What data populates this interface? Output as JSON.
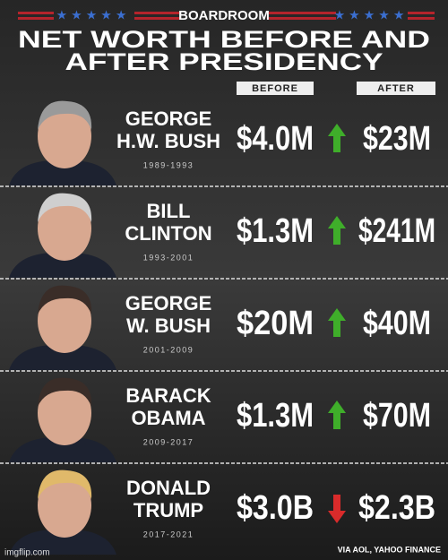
{
  "header": {
    "brand": "BOARDROOM",
    "title_lines": [
      "NET WORTH BEFORE AND",
      "AFTER PRESIDENCY"
    ]
  },
  "columns": [
    "BEFORE",
    "AFTER"
  ],
  "rows": [
    {
      "name_lines": [
        "GEORGE",
        "H.W. BUSH"
      ],
      "years": "1989-1993",
      "before": "$4.0M",
      "after": "$23M"
    },
    {
      "name_lines": [
        "BILL",
        "CLINTON"
      ],
      "years": "1993-2001",
      "before": "$1.3M",
      "after": "$241M"
    },
    {
      "name_lines": [
        "GEORGE",
        "W. BUSH"
      ],
      "years": "2001-2009",
      "before": "$20M",
      "after": "$40M"
    },
    {
      "name_lines": [
        "BARACK",
        "OBAMA"
      ],
      "years": "2009-2017",
      "before": "$1.3M",
      "after": "$70M"
    },
    {
      "name_lines": [
        "DONALD",
        "TRUMP"
      ],
      "years": "2017-2021",
      "before": "$3.0B",
      "after": "$2.3B"
    }
  ],
  "source": "VIA AOL, YAHOO FINANCE",
  "watermark": "imgflip.com"
}
